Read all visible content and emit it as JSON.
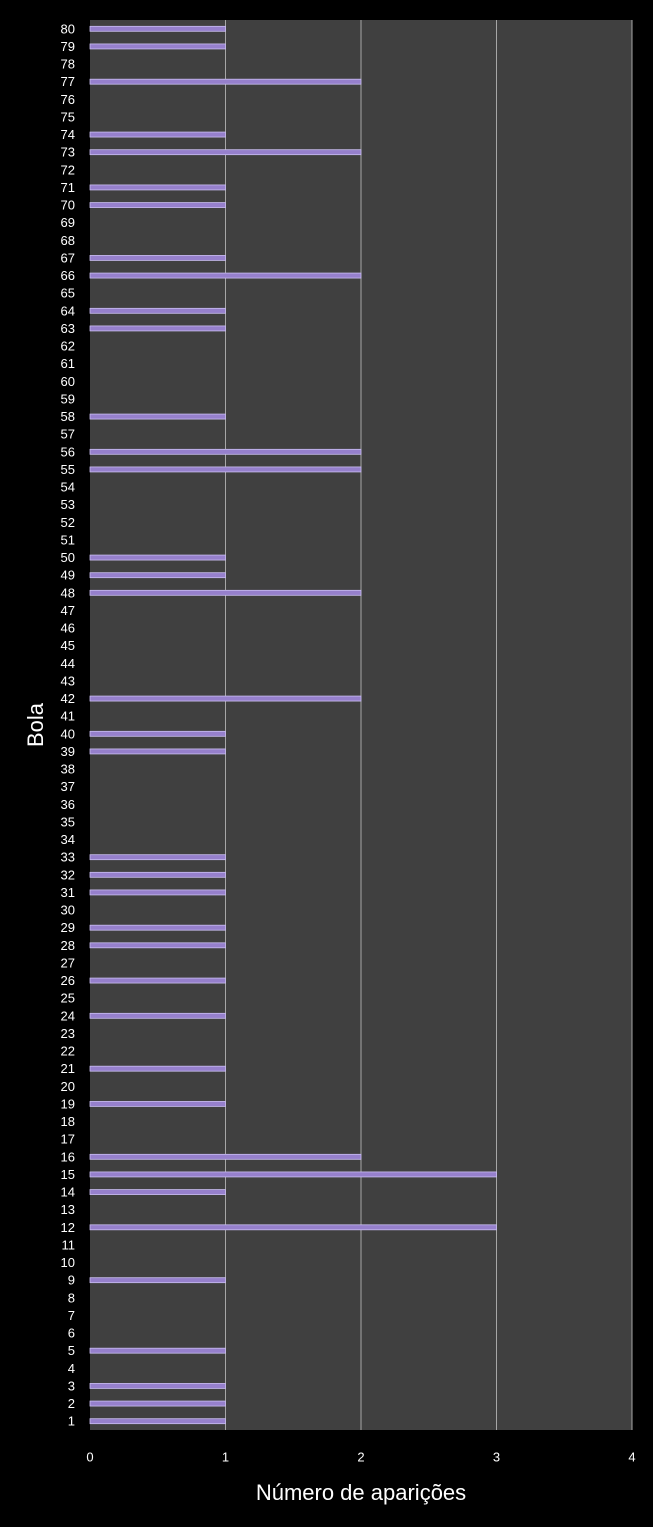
{
  "chart_data": {
    "type": "bar",
    "orientation": "horizontal",
    "x_label": "Número de aparições",
    "y_label": "Bola",
    "categories": [
      "1",
      "2",
      "3",
      "4",
      "5",
      "6",
      "7",
      "8",
      "9",
      "10",
      "11",
      "12",
      "13",
      "14",
      "15",
      "16",
      "17",
      "18",
      "19",
      "20",
      "21",
      "22",
      "23",
      "24",
      "25",
      "26",
      "27",
      "28",
      "29",
      "30",
      "31",
      "32",
      "33",
      "34",
      "35",
      "36",
      "37",
      "38",
      "39",
      "40",
      "41",
      "42",
      "43",
      "44",
      "45",
      "46",
      "47",
      "48",
      "49",
      "50",
      "51",
      "52",
      "53",
      "54",
      "55",
      "56",
      "57",
      "58",
      "59",
      "60",
      "61",
      "62",
      "63",
      "64",
      "65",
      "66",
      "67",
      "68",
      "69",
      "70",
      "71",
      "72",
      "73",
      "74",
      "75",
      "76",
      "77",
      "78",
      "79",
      "80"
    ],
    "values": [
      1,
      1,
      1,
      0,
      1,
      0,
      0,
      0,
      1,
      0,
      0,
      3,
      0,
      1,
      3,
      2,
      0,
      0,
      1,
      0,
      1,
      0,
      0,
      1,
      0,
      1,
      0,
      1,
      1,
      0,
      1,
      1,
      1,
      0,
      0,
      0,
      0,
      0,
      1,
      1,
      0,
      2,
      0,
      0,
      0,
      0,
      0,
      2,
      1,
      1,
      0,
      0,
      0,
      0,
      2,
      2,
      0,
      1,
      0,
      0,
      0,
      0,
      1,
      1,
      0,
      2,
      1,
      0,
      0,
      1,
      1,
      0,
      2,
      1,
      0,
      0,
      2,
      0,
      1,
      1
    ],
    "color": "#9680cc",
    "xlim": [
      0,
      4
    ],
    "xticks": [
      0,
      1,
      2,
      3,
      4
    ],
    "grid": true
  }
}
